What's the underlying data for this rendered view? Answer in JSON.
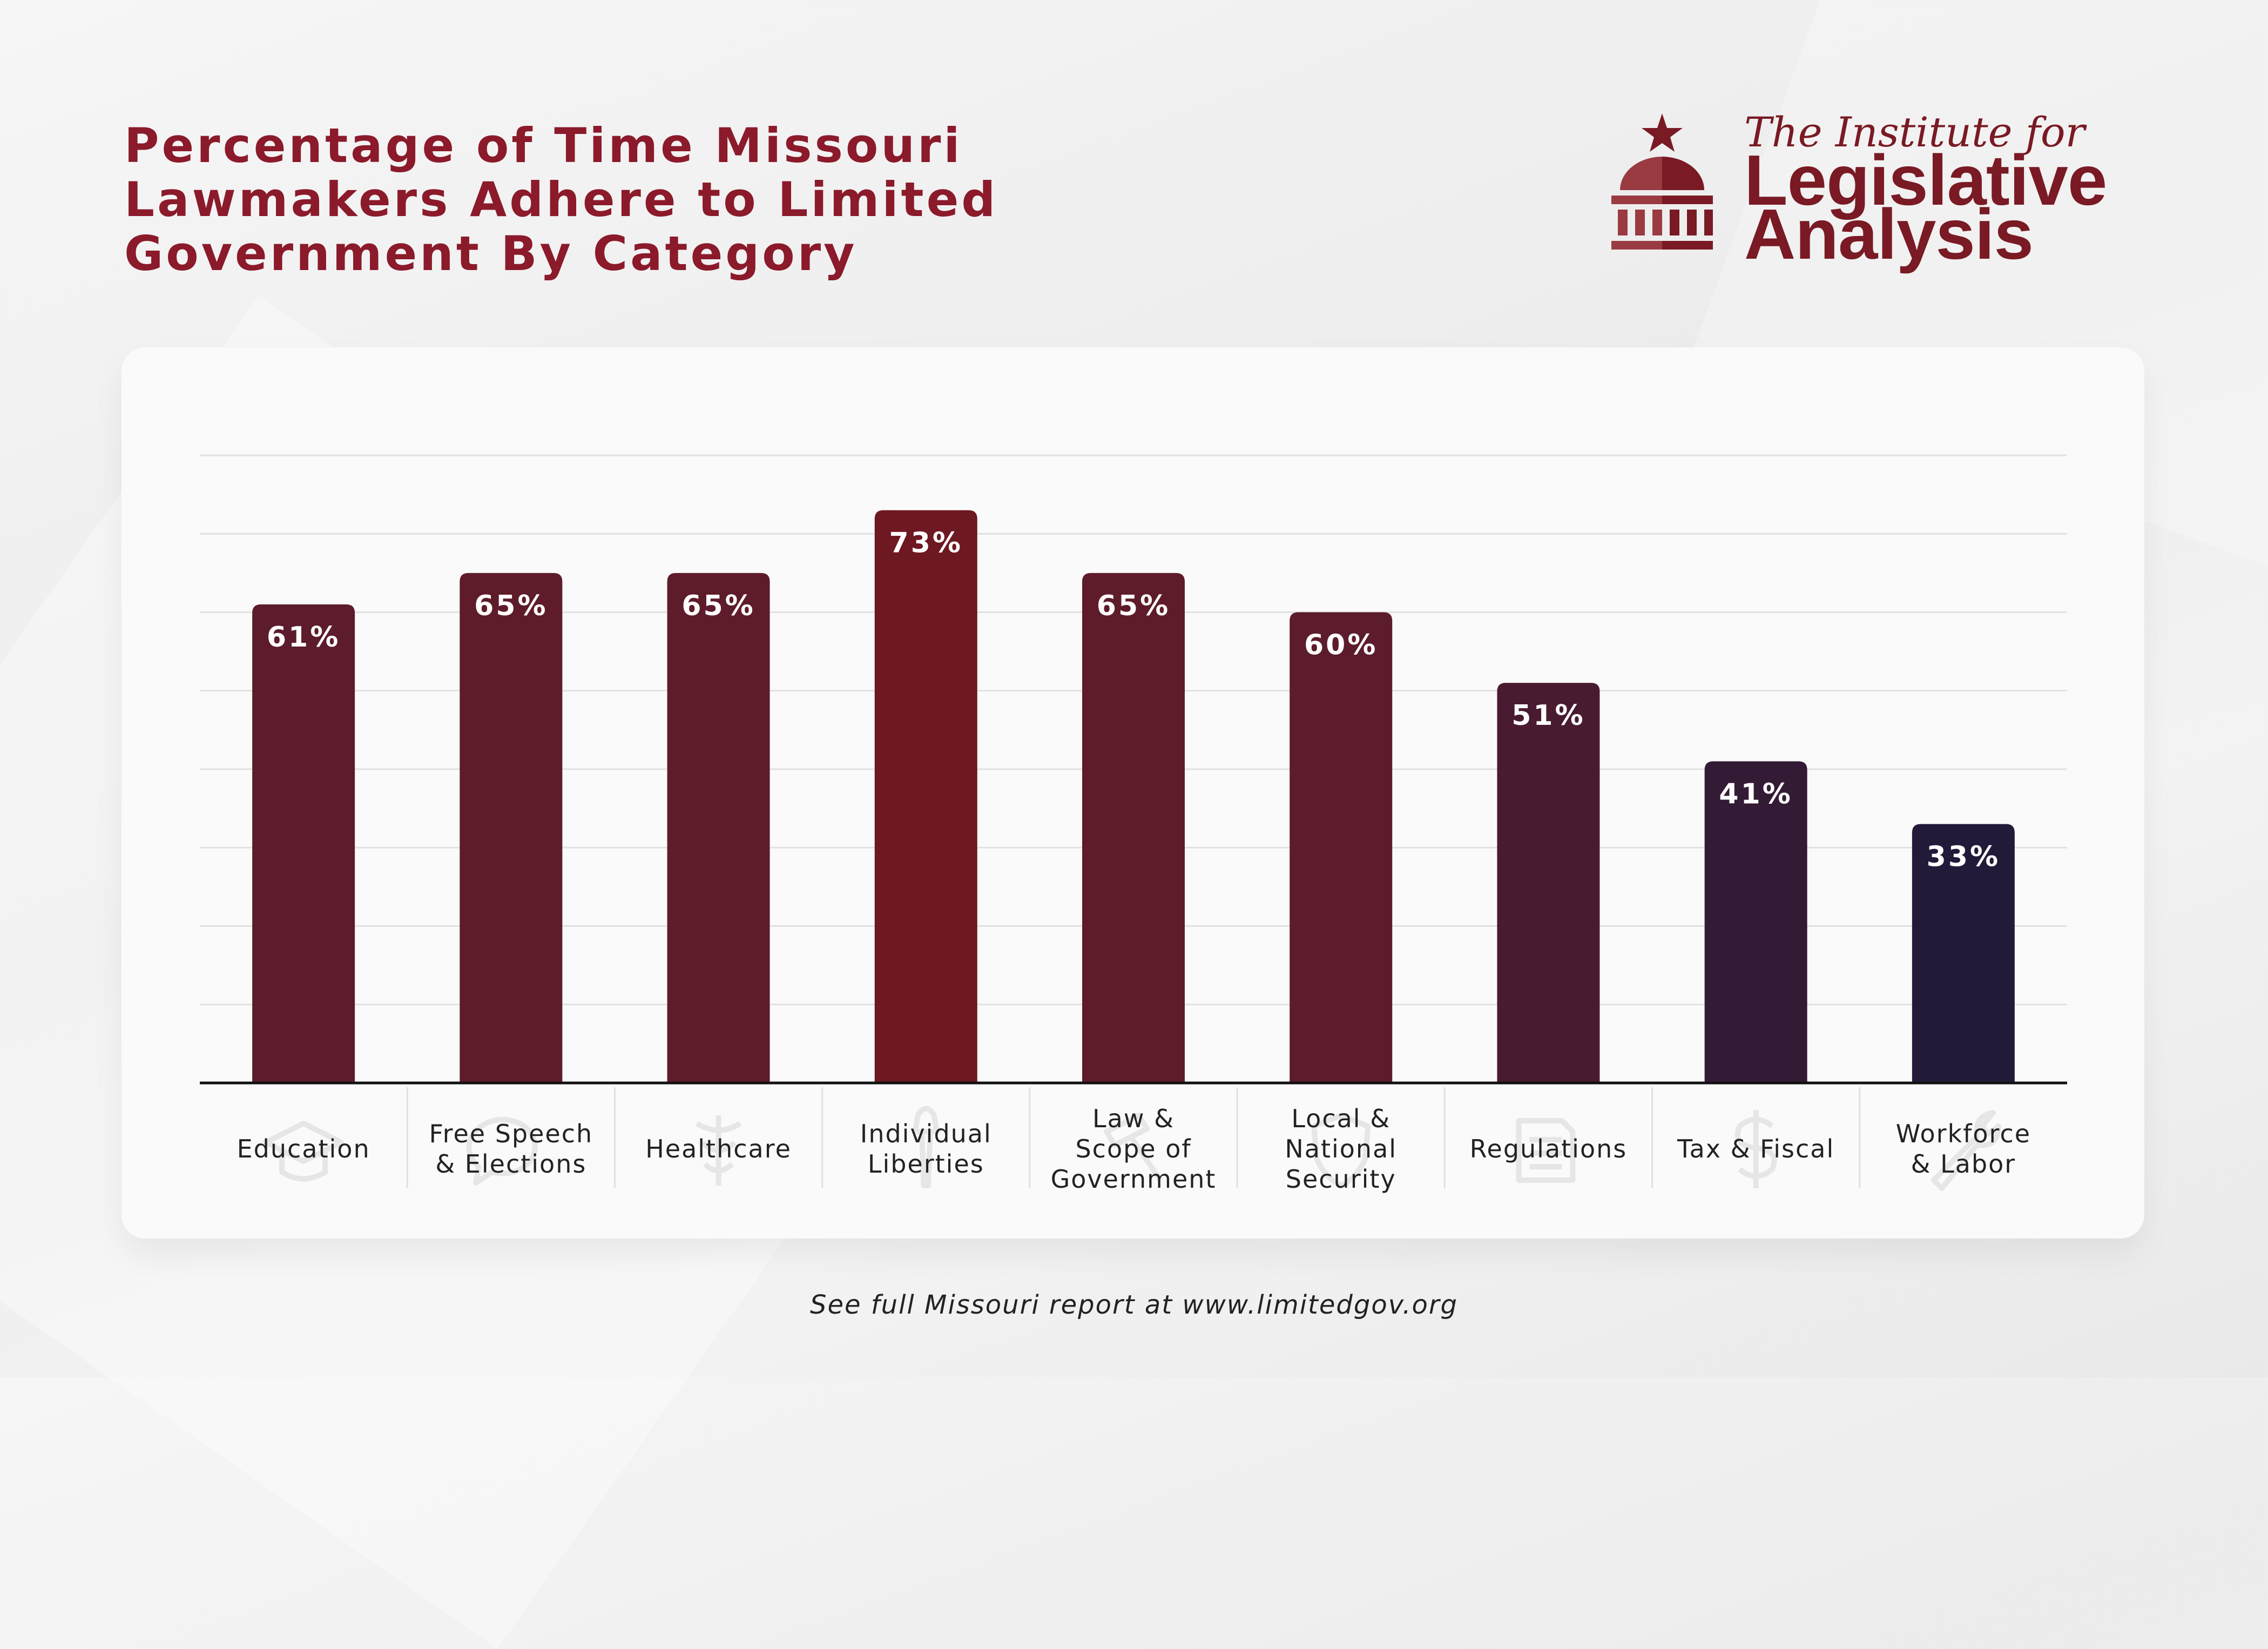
{
  "title_lines": [
    "Percentage of Time Missouri",
    "Lawmakers Adhere to Limited",
    "Government By Category"
  ],
  "logo": {
    "line1": "The Institute for",
    "line2": "Legislative",
    "line3": "Analysis"
  },
  "footer": "See full Missouri report at www.limitedgov.org",
  "colors": {
    "title": "#8b1a2b",
    "bar_high": "#6e1822",
    "bar_mid": "#5c1c2b",
    "bar_low": "#231a39"
  },
  "chart_data": {
    "type": "bar",
    "categories": [
      [
        "Education"
      ],
      [
        "Free Speech",
        "& Elections"
      ],
      [
        "Healthcare"
      ],
      [
        "Individual",
        "Liberties"
      ],
      [
        "Law &",
        "Scope of",
        "Government"
      ],
      [
        "Local &",
        "National",
        "Security"
      ],
      [
        "Regulations"
      ],
      [
        "Tax & Fiscal"
      ],
      [
        "Workforce",
        "& Labor"
      ]
    ],
    "category_icons": [
      "graduation-cap-icon",
      "speech-bubble-icon",
      "caduceus-icon",
      "torch-icon",
      "gavel-icon",
      "shield-icon",
      "documents-icon",
      "dollar-icon",
      "wrench-icon"
    ],
    "values": [
      61,
      65,
      65,
      73,
      65,
      60,
      51,
      41,
      33
    ],
    "value_labels": [
      "61%",
      "65%",
      "65%",
      "73%",
      "65%",
      "60%",
      "51%",
      "41%",
      "33%"
    ],
    "ylim": [
      0,
      80
    ],
    "grid": true,
    "legend": "none"
  }
}
